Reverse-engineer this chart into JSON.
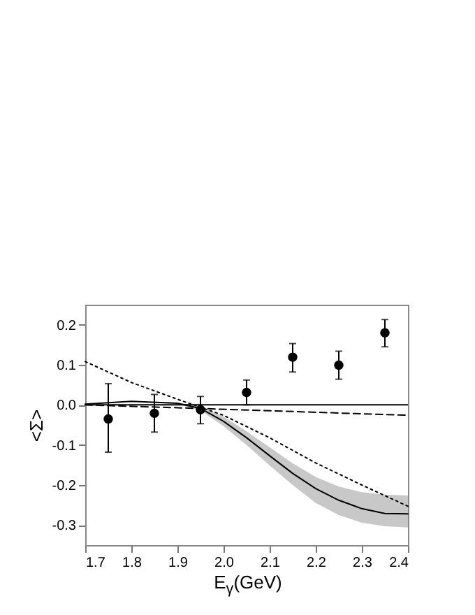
{
  "chart_data": {
    "type": "scatter",
    "xlabel": "E$_{γ}$(GeV)",
    "ylabel": "<Σ>",
    "xlim": [
      1.7,
      2.4
    ],
    "xticks": [
      1.7,
      1.8,
      1.9,
      {
        "value": 2.0,
        "label": "2.0"
      },
      2.1,
      2.2,
      2.3,
      2.4
    ],
    "ylim": [
      -0.35,
      0.25
    ],
    "yticks": [
      {
        "value": -0.3,
        "label": "-0.3"
      },
      {
        "value": -0.2,
        "label": "-0.2"
      },
      {
        "value": -0.1,
        "label": "-0.1"
      },
      {
        "value": 0,
        "label": "0.0"
      },
      {
        "value": 0.1,
        "label": "0.1"
      },
      {
        "value": 0.2,
        "label": "0.2"
      }
    ],
    "grid": false,
    "marker": "circle",
    "ref_lines": [
      {
        "axis": "y",
        "value": 0,
        "color": "#000000",
        "line_style": "solid"
      }
    ],
    "series": [
      {
        "type": "line",
        "color": "#000000",
        "line_style": "solid",
        "marker": "none",
        "x": [
          1.7,
          1.8,
          1.9,
          1.95,
          2.0,
          2.05,
          2.1,
          2.15,
          2.2,
          2.25,
          2.3,
          2.35,
          2.4
        ],
        "values": [
          0.002,
          0.009,
          0.004,
          -0.009,
          -0.041,
          -0.082,
          -0.127,
          -0.171,
          -0.209,
          -0.238,
          -0.259,
          -0.271,
          -0.272
        ],
        "lower": [
          0.002,
          0.009,
          0.002,
          -0.014,
          -0.053,
          -0.1,
          -0.151,
          -0.2,
          -0.245,
          -0.275,
          -0.294,
          -0.303,
          -0.306
        ],
        "upper": [
          0.002,
          0.009,
          0.006,
          -0.005,
          -0.029,
          -0.066,
          -0.106,
          -0.146,
          -0.18,
          -0.204,
          -0.218,
          -0.224,
          -0.226
        ]
      },
      {
        "type": "line",
        "color": "#000000",
        "line_style": "dashed",
        "marker": "none",
        "x": [
          1.7,
          1.95,
          2.4
        ],
        "values": [
          0.0,
          -0.009,
          -0.026
        ]
      },
      {
        "type": "line",
        "color": "#000000",
        "line_style": "dotted",
        "marker": "none",
        "x": [
          1.7,
          1.8,
          1.9,
          2.0,
          2.1,
          2.2,
          2.3,
          2.4
        ],
        "values": [
          0.108,
          0.056,
          0.014,
          -0.026,
          -0.082,
          -0.145,
          -0.2,
          -0.253
        ]
      },
      {
        "color": "#000000",
        "x": [
          1.75,
          1.85,
          1.95,
          2.05,
          2.15,
          2.25,
          2.35
        ],
        "values": [
          -0.035,
          -0.021,
          -0.012,
          0.031,
          0.119,
          0.099,
          0.18
        ],
        "errors": [
          [
            -0.118,
            0.053
          ],
          [
            -0.068,
            0.026
          ],
          [
            -0.047,
            0.021
          ],
          [
            0.0,
            0.062
          ],
          [
            0.082,
            0.153
          ],
          [
            0.064,
            0.134
          ],
          [
            0.145,
            0.213
          ]
        ]
      }
    ]
  }
}
